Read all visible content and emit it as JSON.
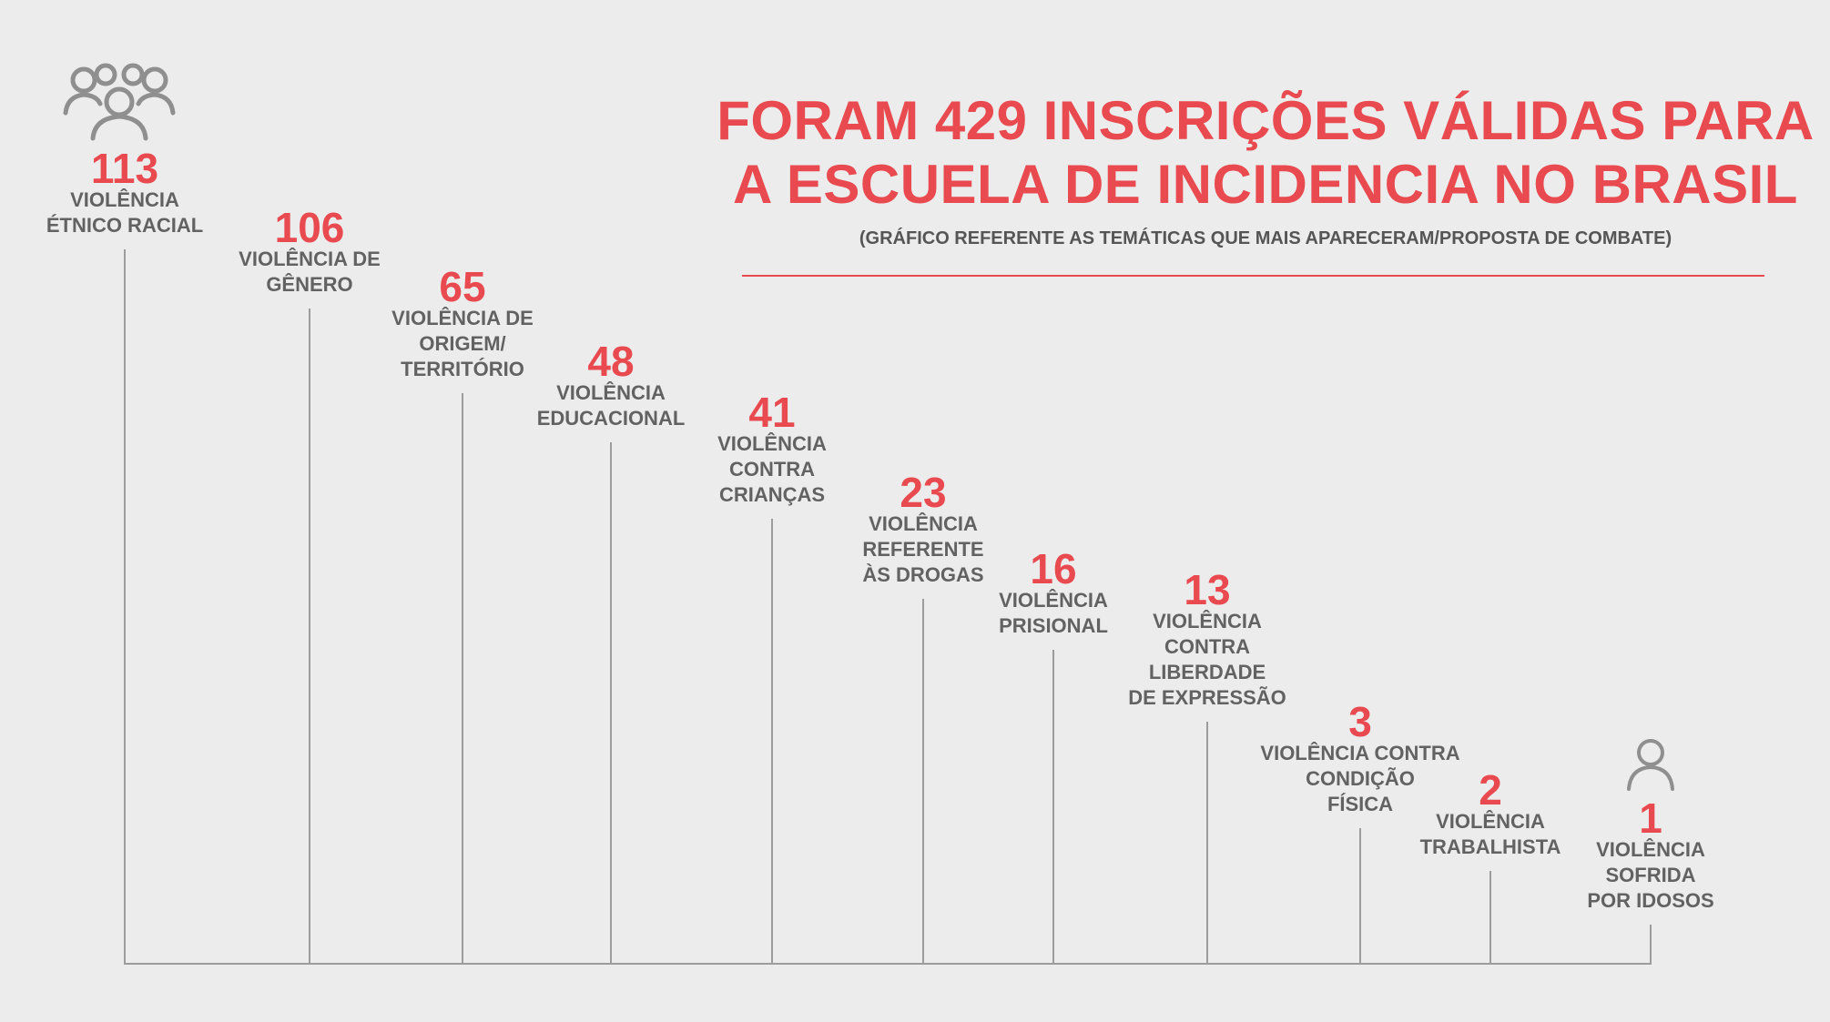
{
  "title_line1": "FORAM 429 INSCRIÇÕES VÁLIDAS PARA",
  "title_line2": "A ESCUELA DE INCIDENCIA NO BRASIL",
  "subtitle": "(GRÁFICO REFERENTE AS TEMÁTICAS QUE MAIS APARECERAM/PROPOSTA DE COMBATE)",
  "colors": {
    "accent": "#e84a4f",
    "label": "#626262",
    "line": "#9c9c9c",
    "background": "#ececec",
    "icon": "#8f8f8f"
  },
  "icons": {
    "group": "people-group-icon",
    "single": "person-icon"
  },
  "chart_data": {
    "type": "bar",
    "title": "FORAM 429 INSCRIÇÕES VÁLIDAS PARA A ESCUELA DE INCIDENCIA NO BRASIL",
    "subtitle": "(GRÁFICO REFERENTE AS TEMÁTICAS QUE MAIS APARECERAM/PROPOSTA DE COMBATE)",
    "categories": [
      "VIOLÊNCIA\nÉTNICO RACIAL",
      "VIOLÊNCIA DE\nGÊNERO",
      "VIOLÊNCIA DE\nORIGEM/\nTERRITÓRIO",
      "VIOLÊNCIA\nEDUCACIONAL",
      "VIOLÊNCIA\nCONTRA\nCRIANÇAS",
      "VIOLÊNCIA\nREFERENTE\nÀS DROGAS",
      "VIOLÊNCIA\nPRISIONAL",
      "VIOLÊNCIA\nCONTRA\nLIBERDADE\nDE EXPRESSÃO",
      "VIOLÊNCIA CONTRA\nCONDIÇÃO\nFÍSICA",
      "VIOLÊNCIA\nTRABALHISTA",
      "VIOLÊNCIA\nSOFRIDA\nPOR IDOSOS"
    ],
    "values": [
      113,
      106,
      65,
      48,
      41,
      23,
      16,
      13,
      3,
      2,
      1
    ],
    "value_labels": [
      "113",
      "106",
      "65",
      "48",
      "41",
      "23",
      "16",
      "13",
      "3",
      "2",
      "1"
    ],
    "xlabel": "",
    "ylabel": "",
    "grid": false,
    "legend": "none"
  }
}
